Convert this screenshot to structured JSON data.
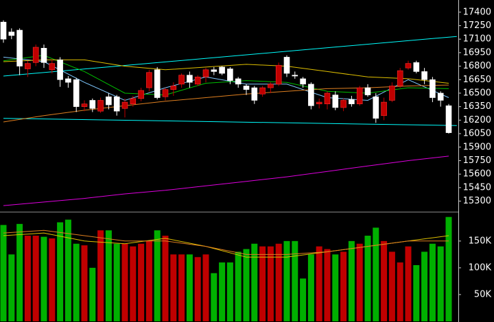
{
  "chart_data": [
    {
      "type": "candlestick",
      "up_color": "#c00000",
      "down_color": "#ffffff",
      "open": [
        17290,
        17180,
        17200,
        16770,
        16840,
        17000,
        16760,
        16870,
        16660,
        16650,
        16350,
        16420,
        16300,
        16460,
        16460,
        16330,
        16380,
        16440,
        16560,
        16760,
        16460,
        16540,
        16600,
        16700,
        16600,
        16680,
        16760,
        16790,
        16770,
        16660,
        16580,
        16560,
        16490,
        16560,
        16600,
        16900,
        16700,
        16660,
        16600,
        16380,
        16380,
        16480,
        16340,
        16430,
        16380,
        16560,
        16460,
        16250,
        16420,
        16580,
        16780,
        16840,
        16740,
        16650,
        16500,
        16360
      ],
      "high": [
        17310,
        17220,
        17220,
        16860,
        17040,
        17040,
        16880,
        16900,
        16690,
        16670,
        16420,
        16440,
        16450,
        16500,
        16480,
        16440,
        16470,
        16560,
        16760,
        16790,
        16560,
        16620,
        16720,
        16740,
        16700,
        16780,
        16790,
        16800,
        16790,
        16680,
        16600,
        16580,
        16580,
        16620,
        16840,
        16920,
        16740,
        16680,
        16620,
        16440,
        16520,
        16520,
        16440,
        16470,
        16580,
        16600,
        16500,
        16450,
        16620,
        16780,
        16860,
        16860,
        16780,
        16680,
        16520,
        16380
      ],
      "low": [
        17060,
        17100,
        16700,
        16680,
        16800,
        16780,
        16720,
        16570,
        16560,
        16290,
        16300,
        16290,
        16280,
        16320,
        16250,
        16230,
        16350,
        16410,
        16520,
        16430,
        16420,
        16470,
        16560,
        16560,
        16580,
        16620,
        16700,
        16700,
        16600,
        16560,
        16480,
        16380,
        16460,
        16500,
        16580,
        16680,
        16660,
        16560,
        16320,
        16330,
        16320,
        16310,
        16300,
        16350,
        16360,
        16460,
        16170,
        16200,
        16400,
        16560,
        16760,
        16720,
        16600,
        16400,
        16350,
        16050
      ],
      "close": [
        17100,
        17140,
        16800,
        16830,
        17010,
        16840,
        16830,
        16650,
        16620,
        16350,
        16380,
        16330,
        16420,
        16370,
        16300,
        16400,
        16440,
        16530,
        16730,
        16450,
        16540,
        16580,
        16700,
        16620,
        16680,
        16760,
        16740,
        16720,
        16640,
        16600,
        16540,
        16420,
        16560,
        16600,
        16810,
        16720,
        16690,
        16600,
        16360,
        16400,
        16500,
        16340,
        16420,
        16380,
        16560,
        16480,
        16220,
        16400,
        16580,
        16750,
        16830,
        16740,
        16650,
        16450,
        16420,
        16060
      ],
      "ylim": [
        15190,
        17520
      ],
      "yticks": [
        17400,
        17250,
        17100,
        16950,
        16800,
        16650,
        16500,
        16350,
        16200,
        16050,
        15900,
        15750,
        15600,
        15450,
        15300
      ],
      "lines": [
        {
          "color": "#00ffff",
          "x": [
            0,
            56
          ],
          "values": [
            16690,
            17130
          ]
        },
        {
          "color": "#00ffff",
          "x": [
            0,
            56
          ],
          "values": [
            16220,
            16140
          ]
        },
        {
          "color": "#7fc8ff",
          "x": [
            0,
            5,
            10,
            15,
            20,
            25,
            30,
            35,
            40,
            45,
            50,
            55
          ],
          "values": [
            16900,
            16850,
            16620,
            16420,
            16560,
            16680,
            16600,
            16600,
            16450,
            16420,
            16650,
            16450
          ]
        },
        {
          "color": "#00c000",
          "x": [
            0,
            5,
            10,
            15,
            20,
            25,
            30,
            35,
            40,
            45,
            50,
            55
          ],
          "values": [
            16860,
            16920,
            16740,
            16500,
            16480,
            16610,
            16640,
            16620,
            16520,
            16500,
            16560,
            16550
          ]
        },
        {
          "color": "#e0c000",
          "x": [
            0,
            5,
            10,
            15,
            20,
            25,
            30,
            35,
            40,
            45,
            50,
            55
          ],
          "values": [
            16850,
            16870,
            16870,
            16800,
            16760,
            16790,
            16820,
            16800,
            16740,
            16680,
            16660,
            16610
          ]
        },
        {
          "color": "#e08020",
          "x": [
            0,
            5,
            10,
            15,
            20,
            25,
            30,
            35,
            40,
            45,
            50,
            55
          ],
          "values": [
            16180,
            16250,
            16310,
            16360,
            16410,
            16450,
            16490,
            16520,
            16550,
            16560,
            16580,
            16590
          ]
        },
        {
          "color": "#e000e0",
          "x": [
            0,
            5,
            10,
            15,
            20,
            25,
            30,
            35,
            40,
            45,
            50,
            55
          ],
          "values": [
            15250,
            15290,
            15330,
            15380,
            15420,
            15470,
            15520,
            15570,
            15630,
            15690,
            15750,
            15800
          ]
        }
      ]
    },
    {
      "type": "bar",
      "up_color": "#c00000",
      "down_color": "#00b000",
      "values": [
        180000,
        125000,
        182000,
        160000,
        160000,
        158000,
        155000,
        185000,
        190000,
        145000,
        142000,
        100000,
        170000,
        170000,
        145000,
        145000,
        140000,
        145000,
        150000,
        170000,
        160000,
        125000,
        125000,
        125000,
        120000,
        125000,
        90000,
        110000,
        110000,
        130000,
        135000,
        145000,
        140000,
        140000,
        145000,
        150000,
        150000,
        80000,
        125000,
        140000,
        135000,
        125000,
        130000,
        150000,
        145000,
        160000,
        175000,
        150000,
        130000,
        110000,
        140000,
        105000,
        130000,
        145000,
        140000,
        195000
      ],
      "ylim": [
        0,
        201000
      ],
      "yticks": [
        {
          "value": 150000,
          "label": "150K"
        },
        {
          "value": 100000,
          "label": "100K"
        },
        {
          "value": 50000,
          "label": "50K"
        }
      ],
      "lines": [
        {
          "color": "#e0c000",
          "x": [
            0,
            5,
            10,
            15,
            20,
            25,
            30,
            35,
            40,
            45,
            50,
            55
          ],
          "values": [
            160000,
            165000,
            150000,
            145000,
            155000,
            140000,
            120000,
            120000,
            130000,
            140000,
            150000,
            160000
          ]
        },
        {
          "color": "#e08020",
          "x": [
            0,
            5,
            10,
            15,
            20,
            25,
            30,
            35,
            40,
            45,
            50,
            55
          ],
          "values": [
            165000,
            170000,
            160000,
            150000,
            150000,
            140000,
            125000,
            125000,
            130000,
            140000,
            150000,
            150000
          ]
        }
      ]
    }
  ]
}
